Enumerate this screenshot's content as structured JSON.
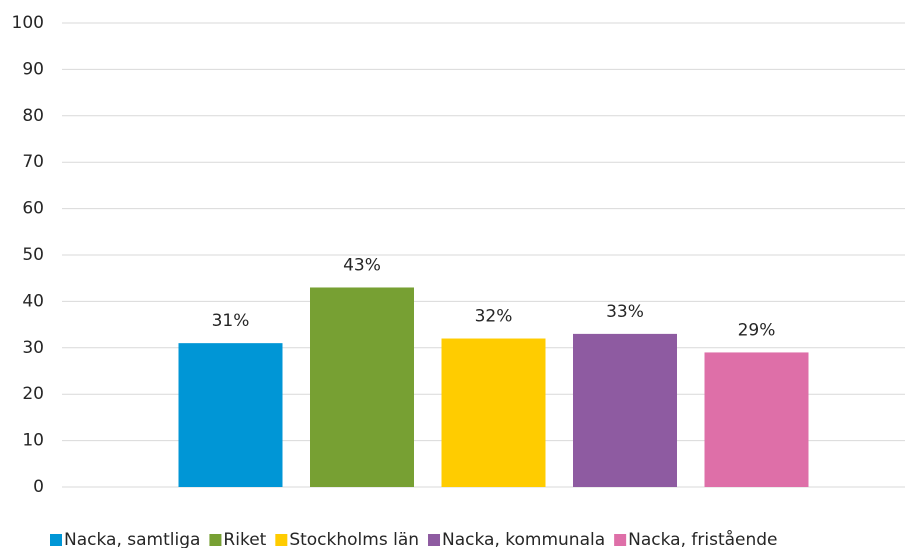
{
  "chart_data": {
    "type": "bar",
    "categories": [
      null
    ],
    "series": [
      {
        "name": "Nacka, samtliga",
        "color": "#0096d6",
        "values": [
          31
        ],
        "value_labels": [
          "31%"
        ]
      },
      {
        "name": "Riket",
        "color": "#77a033",
        "values": [
          43
        ],
        "value_labels": [
          "43%"
        ]
      },
      {
        "name": "Stockholms län",
        "color": "#ffcc00",
        "values": [
          32
        ],
        "value_labels": [
          "32%"
        ]
      },
      {
        "name": "Nacka, kommunala",
        "color": "#8e5ba1",
        "values": [
          33
        ],
        "value_labels": [
          "33%"
        ]
      },
      {
        "name": "Nacka, fristående",
        "color": "#de6fa8",
        "values": [
          29
        ],
        "value_labels": [
          "29%"
        ]
      }
    ],
    "ylim": [
      0,
      100
    ],
    "yticks": [
      0,
      10,
      20,
      30,
      40,
      50,
      60,
      70,
      80,
      90,
      100
    ],
    "grid": true,
    "legend": "bottom"
  }
}
